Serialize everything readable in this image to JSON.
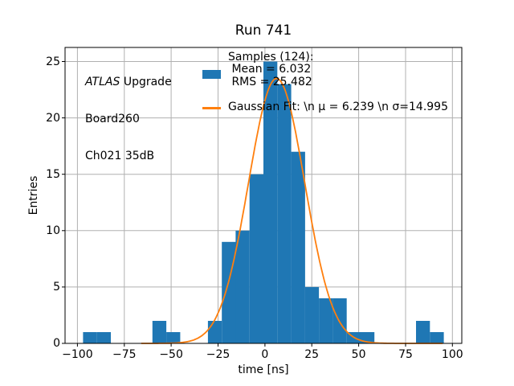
{
  "chart_data": {
    "type": "histogram+line",
    "title": "Run 741",
    "xlabel": "time [ns]",
    "ylabel": "Entries",
    "xlim": [
      -106.6,
      105.0
    ],
    "ylim": [
      0,
      26.25
    ],
    "grid": true,
    "legend_position": "upper center, frameless",
    "bar_color": "#1f77b4",
    "line_color": "#ff7f0e",
    "grid_color": "#b0b0b0",
    "axis_color": "#000000",
    "xticks": {
      "values": [
        -100,
        -75,
        -50,
        -25,
        0,
        25,
        50,
        75,
        100
      ],
      "labels": [
        "−100",
        "−75",
        "−50",
        "−25",
        "0",
        "25",
        "50",
        "75",
        "100"
      ]
    },
    "yticks": {
      "values": [
        0,
        5,
        10,
        15,
        20,
        25
      ],
      "labels": [
        "0",
        "5",
        "10",
        "15",
        "20",
        "25"
      ]
    },
    "bin_edges": [
      -97.0,
      -89.6,
      -82.2,
      -74.8,
      -67.4,
      -60.0,
      -52.6,
      -45.2,
      -37.8,
      -30.4,
      -23.0,
      -15.6,
      -8.2,
      -0.8,
      6.6,
      14.0,
      21.4,
      28.8,
      36.2,
      43.6,
      51.0,
      58.4,
      65.8,
      73.2,
      80.6,
      88.0,
      95.4
    ],
    "counts": [
      1,
      1,
      0,
      0,
      0,
      2,
      1,
      0,
      0,
      2,
      9,
      10,
      15,
      25,
      23,
      17,
      5,
      4,
      4,
      1,
      1,
      0,
      0,
      0,
      2,
      1
    ],
    "samples_total": 124,
    "mean": 6.032,
    "rms": 25.482,
    "gaussian_fit": {
      "mu": 6.239,
      "sigma": 14.995,
      "amplitude": 23.5,
      "x_range": [
        -66,
        95.4
      ]
    },
    "legend": {
      "entries": [
        {
          "type": "patch",
          "color": "#1f77b4",
          "lines": [
            "Samples (124):",
            " Mean = 6.032",
            " RMS = 25.482"
          ]
        },
        {
          "type": "line",
          "color": "#ff7f0e",
          "lines": [
            "Gaussian Fit: \\n μ = 6.239 \\n σ=14.995"
          ]
        }
      ]
    },
    "annotation": {
      "line1_italic": "ATLAS",
      "line1_rest": " Upgrade",
      "line2": "Board260",
      "line3": "Ch021 35dB"
    }
  }
}
